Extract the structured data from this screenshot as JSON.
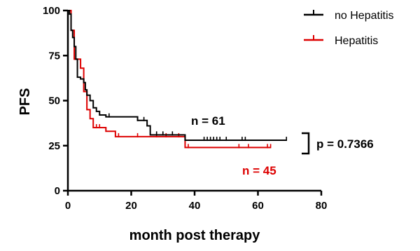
{
  "chart_data": {
    "type": "line",
    "subtype": "kaplan-meier step curve",
    "xlabel": "month post therapy",
    "ylabel": "PFS",
    "xlim": [
      0,
      80
    ],
    "ylim": [
      0,
      100
    ],
    "x_ticks": [
      "0",
      "20",
      "40",
      "60",
      "80"
    ],
    "y_ticks": [
      "0",
      "25",
      "50",
      "75",
      "100"
    ],
    "grid": false,
    "legend_position": "top-right",
    "series": [
      {
        "name": "no Hepatitis",
        "color": "#000000",
        "steps": [
          [
            0,
            100
          ],
          [
            0.5,
            98
          ],
          [
            1,
            89
          ],
          [
            1.5,
            85
          ],
          [
            2,
            80
          ],
          [
            2.5,
            73
          ],
          [
            3,
            63
          ],
          [
            4,
            62
          ],
          [
            5,
            60
          ],
          [
            5.5,
            56
          ],
          [
            6,
            53
          ],
          [
            7,
            50
          ],
          [
            8,
            46
          ],
          [
            9,
            44
          ],
          [
            10,
            42
          ],
          [
            12,
            41
          ],
          [
            22,
            39
          ],
          [
            25,
            36
          ],
          [
            26,
            31
          ],
          [
            37,
            28
          ],
          [
            69,
            28
          ]
        ],
        "censor_x": [
          13,
          22,
          24,
          28,
          30,
          33,
          43,
          44,
          45,
          46,
          47,
          48,
          50,
          55,
          56,
          69
        ]
      },
      {
        "name": "Hepatitis",
        "color": "#dd0000",
        "steps": [
          [
            0,
            100
          ],
          [
            1,
            89
          ],
          [
            2,
            73
          ],
          [
            4,
            68
          ],
          [
            5,
            55
          ],
          [
            6,
            45
          ],
          [
            7,
            40
          ],
          [
            8,
            35
          ],
          [
            12,
            33
          ],
          [
            15,
            30
          ],
          [
            37,
            24
          ],
          [
            64,
            24
          ]
        ],
        "censor_x": [
          9,
          10,
          16,
          22,
          28,
          31,
          35,
          38,
          54,
          57,
          63,
          64
        ]
      }
    ],
    "annotations": {
      "n_no_hep": "n = 61",
      "n_hep": "n = 45",
      "p_value": "p = 0.7366"
    }
  }
}
